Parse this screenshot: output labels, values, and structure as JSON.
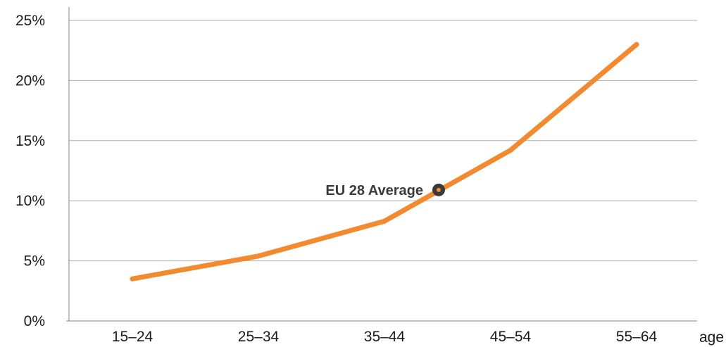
{
  "colors": {
    "line": "#f28a30",
    "grid": "#b0b0b0",
    "axis": "#9a9a9a",
    "text": "#1a1a1a",
    "annotation": "#3a3a3a"
  },
  "chart_data": {
    "type": "line",
    "title": "",
    "xlabel": "age",
    "ylabel": "",
    "categories": [
      "15–24",
      "25–34",
      "35–44",
      "45–54",
      "55–64"
    ],
    "series": [
      {
        "values": [
          3.5,
          5.4,
          8.3,
          14.2,
          23.0
        ]
      }
    ],
    "ylim": [
      0,
      25
    ],
    "yticks": [
      0,
      5,
      10,
      15,
      20,
      25
    ],
    "ytick_labels": [
      "0%",
      "5%",
      "10%",
      "15%",
      "20%",
      "25%"
    ],
    "grid": true,
    "legend": "none",
    "annotations": [
      {
        "label": "EU 28 Average",
        "x_between": [
          "35–44",
          "45–54"
        ],
        "x_fraction": 0.43,
        "y": 10.9
      }
    ]
  }
}
